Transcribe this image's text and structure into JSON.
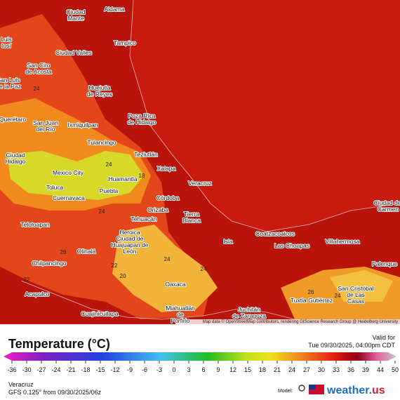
{
  "map": {
    "cities": [
      {
        "lines": [
          "Aldama"
        ]
      },
      {
        "lines": [
          "Ciudad",
          "Mante"
        ]
      },
      {
        "lines": [
          "Tampico"
        ]
      },
      {
        "lines": [
          "Luis",
          "tosí"
        ]
      },
      {
        "lines": [
          "Ciudad Valles"
        ]
      },
      {
        "lines": [
          "San Ciro",
          "de Acosta"
        ]
      },
      {
        "lines": [
          "San Luis",
          "de la Paz"
        ]
      },
      {
        "lines": [
          "Huejutla",
          "de Reyes"
        ]
      },
      {
        "lines": [
          "Querétaro"
        ]
      },
      {
        "lines": [
          "Poza Rica",
          "de Hidalgo"
        ]
      },
      {
        "lines": [
          "San Juan",
          "del Río"
        ]
      },
      {
        "lines": [
          "Ixmiquilpan"
        ]
      },
      {
        "lines": [
          "Tulancingo"
        ]
      },
      {
        "lines": [
          "Teziutlán"
        ]
      },
      {
        "lines": [
          "Ciudad",
          "Hidalgo"
        ]
      },
      {
        "lines": [
          "Xalapa"
        ]
      },
      {
        "lines": [
          "Mexico City"
        ]
      },
      {
        "lines": [
          "Huamantla"
        ]
      },
      {
        "lines": [
          "Veracruz"
        ]
      },
      {
        "lines": [
          "Toluca"
        ]
      },
      {
        "lines": [
          "Puebla"
        ]
      },
      {
        "lines": [
          "Córdoba"
        ]
      },
      {
        "lines": [
          "Cuernavaca"
        ]
      },
      {
        "lines": [
          "Orizaba"
        ]
      },
      {
        "lines": [
          "Tierra",
          "Blanca"
        ]
      },
      {
        "lines": [
          "Ciudad del",
          "Carmen"
        ]
      },
      {
        "lines": [
          "Tehuacán"
        ]
      },
      {
        "lines": [
          "Teloloapan"
        ]
      },
      {
        "lines": [
          "Heroica",
          "Ciudad de",
          "Huajuapan de",
          "León"
        ]
      },
      {
        "lines": [
          "Coatzacoalcos"
        ]
      },
      {
        "lines": [
          "Las Choapas"
        ]
      },
      {
        "lines": [
          "Isla"
        ]
      },
      {
        "lines": [
          "Villahermosa"
        ]
      },
      {
        "lines": [
          "Olinalá"
        ]
      },
      {
        "lines": [
          "Chilpancingo"
        ]
      },
      {
        "lines": [
          "Palenque"
        ]
      },
      {
        "lines": [
          "Oaxaca"
        ]
      },
      {
        "lines": [
          "Acapulco"
        ]
      },
      {
        "lines": [
          "San Cristóbal",
          "de Las",
          "Casas"
        ]
      },
      {
        "lines": [
          "Tuxtla Gutiérrez"
        ]
      },
      {
        "lines": [
          "Miahuatlán",
          "de",
          "Porfirio"
        ]
      },
      {
        "lines": [
          "Juchitán",
          "de Zaragoza"
        ]
      },
      {
        "lines": [
          "Cuajinicuilapa"
        ]
      }
    ],
    "contour_labels": [
      "24",
      "24",
      "26",
      "22",
      "20",
      "22",
      "24",
      "24",
      "26",
      "24",
      "18",
      "24"
    ],
    "attribution": "Map data © OpenStreetMap contributors, rendering GIScience Research Group @ Heidelberg University"
  },
  "legend": {
    "title": "Temperature (°C)",
    "valid_label": "Valid for",
    "valid_time": "Tue 09/30/2025, 04:00pm CDT",
    "ticks": [
      -36,
      -30,
      -27,
      -24,
      -21,
      -18,
      -15,
      -12,
      -9,
      -6,
      -3,
      0,
      3,
      6,
      9,
      12,
      15,
      18,
      21,
      24,
      27,
      30,
      33,
      36,
      39,
      44,
      50
    ]
  },
  "footer": {
    "location": "Veracruz",
    "run": "GFS 0.125° from 09/30/2025/06z",
    "model_label": "Model:",
    "brand_main": "weather.",
    "brand_tld": "us"
  }
}
